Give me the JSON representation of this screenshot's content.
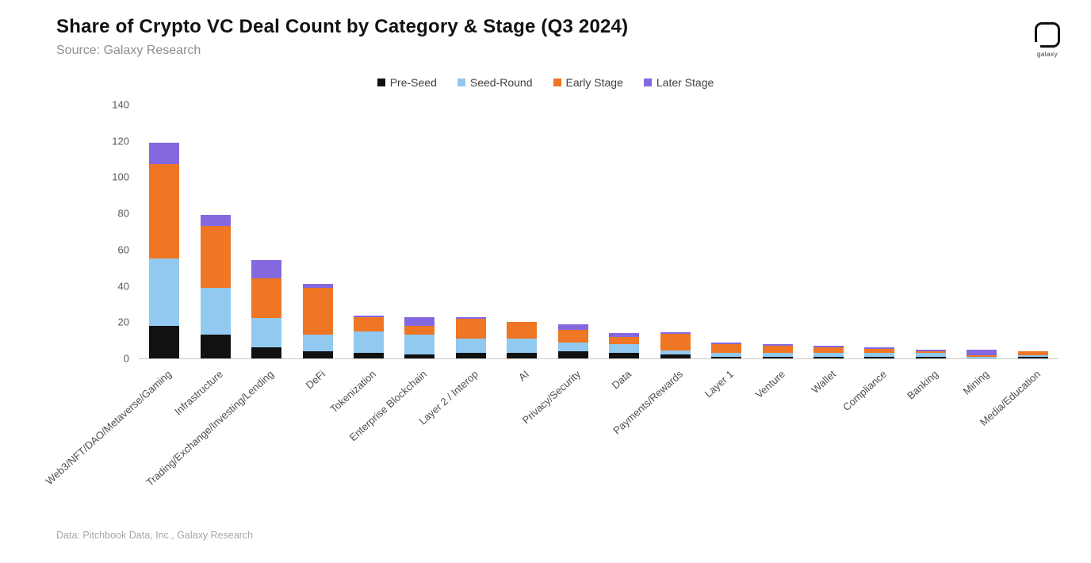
{
  "header": {
    "title": "Share of Crypto VC Deal Count by Category & Stage (Q3 2024)",
    "subtitle": "Source: Galaxy Research",
    "logo_text": "galaxy"
  },
  "footer": {
    "note": "Data: Pitchbook Data, Inc., Galaxy Research"
  },
  "colors": {
    "pre_seed": "#111111",
    "seed_round": "#92c9f0",
    "early_stage": "#ee7624",
    "later_stage": "#8468e0",
    "axis_line": "#c9c9c9"
  },
  "chart_data": {
    "type": "bar",
    "stacked": true,
    "title": "Share of Crypto VC Deal Count by Category & Stage (Q3 2024)",
    "xlabel": "",
    "ylabel": "",
    "ylim": [
      0,
      140
    ],
    "yticks": [
      0,
      20,
      40,
      60,
      80,
      100,
      120,
      140
    ],
    "grid": false,
    "legend_position": "top-center",
    "categories": [
      "Web3/NFT/DAO/Metaverse/Gaming",
      "Infrastructure",
      "Trading/Exchange/Investing/Lending",
      "DeFi",
      "Tokenization",
      "Enterprise Blockchain",
      "Layer 2 / Interop",
      "AI",
      "Privacy/Security",
      "Data",
      "Payments/Rewards",
      "Layer 1",
      "Venture",
      "Wallet",
      "Compliance",
      "Banking",
      "Mining",
      "Media/Education"
    ],
    "series": [
      {
        "name": "Pre-Seed",
        "color": "#111111",
        "values": [
          18,
          13,
          6,
          4,
          3,
          2,
          3,
          3,
          4,
          3,
          2,
          1,
          1,
          1,
          1,
          1,
          0,
          1
        ]
      },
      {
        "name": "Seed-Round",
        "color": "#92c9f0",
        "values": [
          37,
          26,
          16,
          9,
          12,
          11,
          8,
          8,
          5,
          5,
          2,
          2,
          2,
          2,
          2,
          2,
          1,
          1
        ]
      },
      {
        "name": "Early Stage",
        "color": "#ee7624",
        "values": [
          52,
          34,
          22,
          26,
          8,
          5,
          11,
          9,
          7,
          4,
          9,
          5,
          4,
          3,
          2,
          1,
          1,
          2
        ]
      },
      {
        "name": "Later Stage",
        "color": "#8468e0",
        "values": [
          12,
          6,
          10,
          2,
          1,
          5,
          1,
          0,
          3,
          2,
          1,
          1,
          1,
          1,
          1,
          1,
          3,
          0
        ]
      }
    ]
  }
}
